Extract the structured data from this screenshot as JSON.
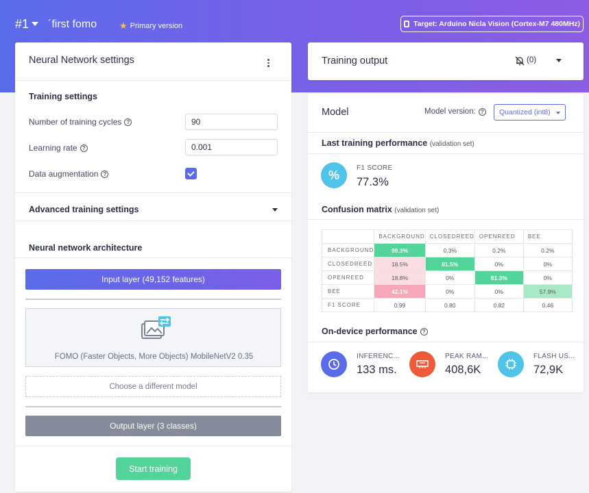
{
  "header": {
    "project_number": "#1",
    "project_name": "´first fomo",
    "primary_label": "Primary version",
    "target_label": "Target: Arduino Nicla Vision (Cortex-M7 480MHz)"
  },
  "nn_settings": {
    "title": "Neural Network settings",
    "training_settings_heading": "Training settings",
    "cycles_label": "Number of training cycles",
    "cycles_value": "90",
    "lr_label": "Learning rate",
    "lr_value": "0.001",
    "augmentation_label": "Data augmentation",
    "augmentation_checked": true,
    "advanced_label": "Advanced training settings",
    "architecture_heading": "Neural network architecture",
    "input_layer": "Input layer (49,152 features)",
    "model_name": "FOMO (Faster Objects, More Objects) MobileNetV2 0.35",
    "choose_model": "Choose a different model",
    "output_layer": "Output layer (3 classes)",
    "start_button": "Start training"
  },
  "training_output": {
    "title": "Training output",
    "notification_count": "(0)"
  },
  "model": {
    "title": "Model",
    "version_label": "Model version:",
    "version_value": "Quantized (int8)",
    "last_perf_heading": "Last training performance",
    "last_perf_sub": "(validation set)",
    "f1_label": "F1 SCORE",
    "f1_value": "77.3%",
    "cm_heading": "Confusion matrix",
    "cm_sub": "(validation set)",
    "cm": {
      "columns": [
        "BACKGROUND",
        "CLOSEDREED",
        "OPENREED",
        "BEE"
      ],
      "rows": [
        {
          "label": "BACKGROUND",
          "cells": [
            "99.3%",
            "0.3%",
            "0.2%",
            "0.2%"
          ]
        },
        {
          "label": "CLOSEDREED",
          "cells": [
            "18.5%",
            "81.5%",
            "0%",
            "0%"
          ]
        },
        {
          "label": "OPENREED",
          "cells": [
            "18.8%",
            "0%",
            "81.3%",
            "0%"
          ]
        },
        {
          "label": "BEE",
          "cells": [
            "42.1%",
            "0%",
            "0%",
            "57.9%"
          ]
        }
      ],
      "f1_row": {
        "label": "F1 SCORE",
        "cells": [
          "0.99",
          "0.80",
          "0.82",
          "0.46"
        ]
      }
    },
    "ondevice_heading": "On-device performance",
    "inference_label": "INFERENC...",
    "inference_value": "133 ms.",
    "ram_label": "PEAK RAM...",
    "ram_value": "408,6K",
    "flash_label": "FLASH US...",
    "flash_value": "72,9K"
  },
  "colors": {
    "accent": "#5a6bea",
    "success": "#52d49a",
    "f1_circle": "#4fc3e8",
    "inference_circle": "#5a6bea",
    "ram_circle": "#ef5a3a",
    "flash_circle": "#4fc3e8"
  }
}
